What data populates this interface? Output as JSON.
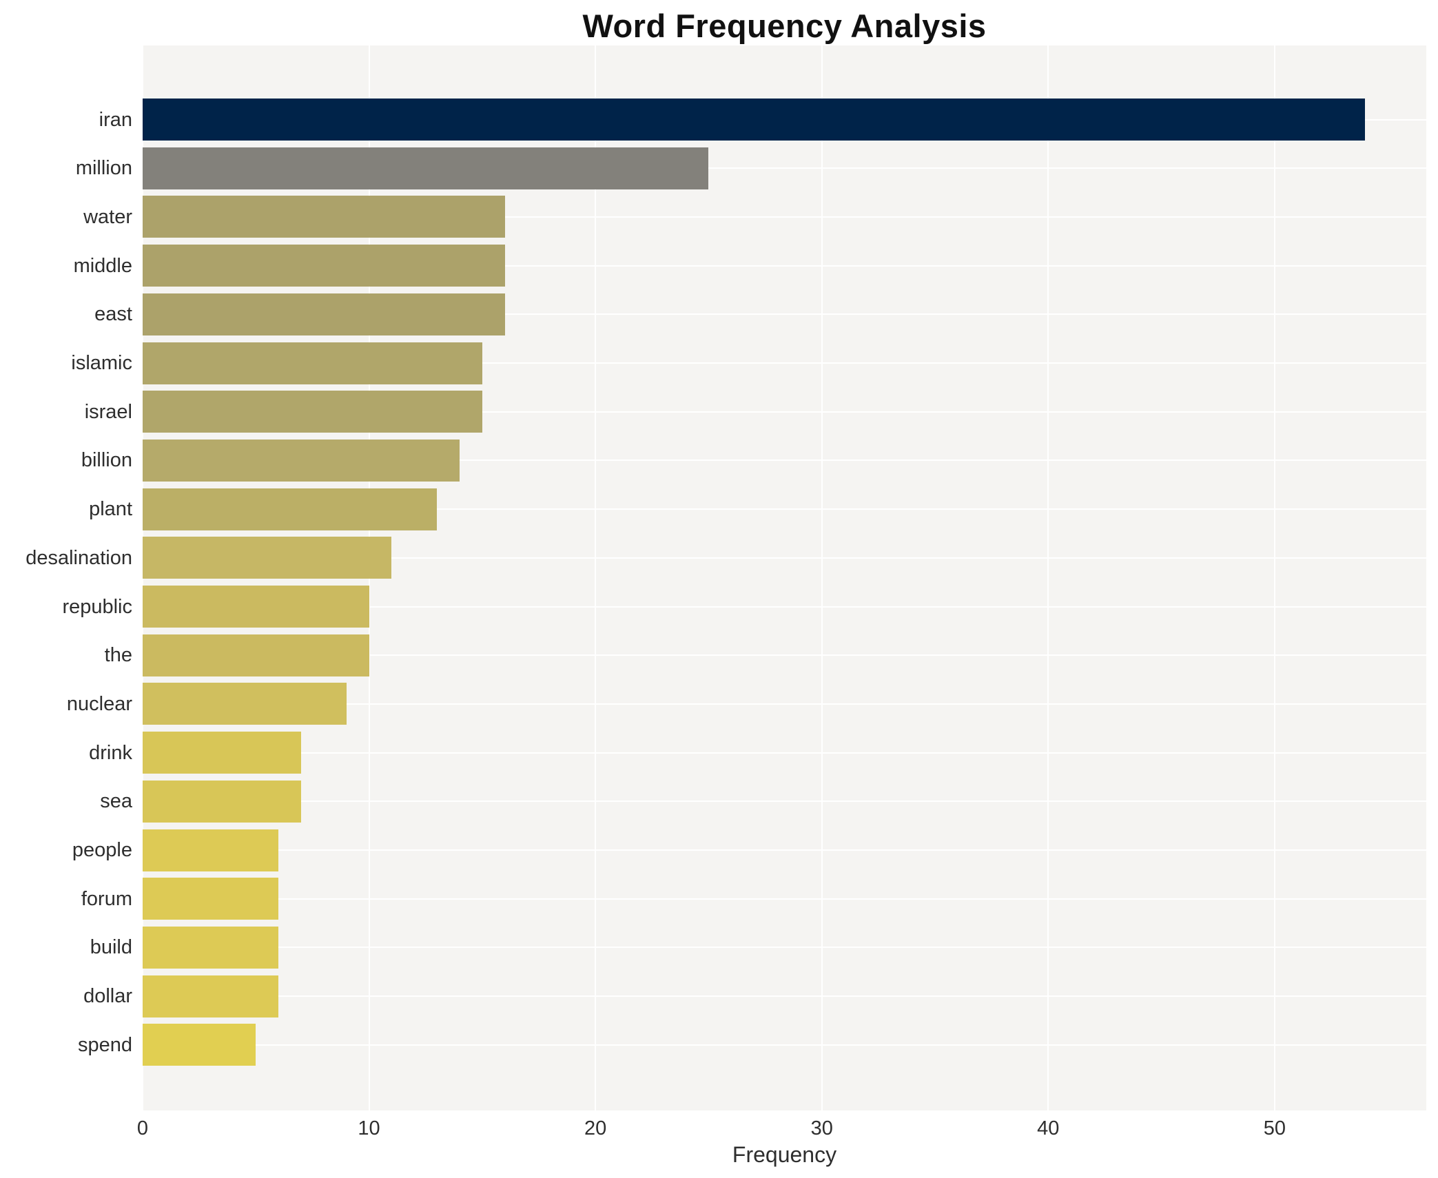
{
  "chart_data": {
    "type": "bar",
    "orientation": "horizontal",
    "title": "Word Frequency Analysis",
    "xlabel": "Frequency",
    "ylabel": "",
    "categories": [
      "iran",
      "million",
      "water",
      "middle",
      "east",
      "islamic",
      "israel",
      "billion",
      "plant",
      "desalination",
      "republic",
      "the",
      "nuclear",
      "drink",
      "sea",
      "people",
      "forum",
      "build",
      "dollar",
      "spend"
    ],
    "values": [
      54,
      25,
      16,
      16,
      16,
      15,
      15,
      14,
      13,
      11,
      10,
      10,
      9,
      7,
      7,
      6,
      6,
      6,
      6,
      5
    ],
    "bar_colors": [
      "#002349",
      "#83817b",
      "#aca26a",
      "#aca26a",
      "#aca26a",
      "#b0a66a",
      "#b0a66a",
      "#b5aa6a",
      "#bbaf66",
      "#c6b765",
      "#cbba60",
      "#cbba60",
      "#d0bf5e",
      "#d8c657",
      "#d8c657",
      "#ddca55",
      "#ddca55",
      "#ddca55",
      "#ddca55",
      "#e1cf51"
    ],
    "xlim": [
      0,
      56.7
    ],
    "xticks": [
      0,
      10,
      20,
      30,
      40,
      50
    ],
    "grid": true,
    "legend_position": "none",
    "plot_bgcolor": "#f5f4f2",
    "paper_bgcolor": "#ffffff",
    "gridline_color": "#ffffff",
    "color_mapping_note": "cividis colorscale reversed, darkest = highest frequency"
  }
}
